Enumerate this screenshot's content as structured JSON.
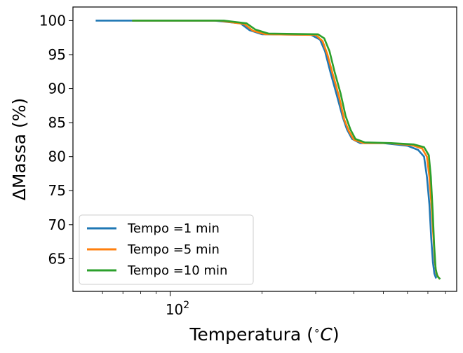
{
  "chart_data": {
    "type": "line",
    "xscale": "log",
    "xlabel": "Temperatura (°C)",
    "ylabel": "ΔMassa (%)",
    "xlim": [
      48,
      870
    ],
    "ylim": [
      60.2,
      102
    ],
    "x_tick_label": "10²",
    "y_ticks": [
      65,
      70,
      75,
      80,
      85,
      90,
      95,
      100
    ],
    "legend_position": "lower-left",
    "grid": false,
    "series": [
      {
        "name": "Tempo =1 min",
        "color": "#1f77b4",
        "points": [
          [
            57,
            100
          ],
          [
            140,
            100
          ],
          [
            170,
            99.6
          ],
          [
            182,
            98.6
          ],
          [
            200,
            98.0
          ],
          [
            290,
            97.9
          ],
          [
            310,
            97.2
          ],
          [
            322,
            95.5
          ],
          [
            335,
            92.5
          ],
          [
            352,
            89.0
          ],
          [
            368,
            85.8
          ],
          [
            380,
            84.0
          ],
          [
            395,
            82.6
          ],
          [
            420,
            82.0
          ],
          [
            500,
            82.0
          ],
          [
            600,
            81.6
          ],
          [
            650,
            81.0
          ],
          [
            680,
            80.0
          ],
          [
            695,
            77.0
          ],
          [
            708,
            73.0
          ],
          [
            718,
            68.0
          ],
          [
            727,
            64.5
          ],
          [
            735,
            62.8
          ],
          [
            745,
            62.1
          ]
        ]
      },
      {
        "name": "Tempo =5 min",
        "color": "#ff7f0e",
        "points": [
          [
            75,
            100
          ],
          [
            145,
            100
          ],
          [
            175,
            99.5
          ],
          [
            187,
            98.5
          ],
          [
            205,
            98.0
          ],
          [
            300,
            97.9
          ],
          [
            316,
            97.0
          ],
          [
            328,
            95.0
          ],
          [
            342,
            92.0
          ],
          [
            358,
            88.8
          ],
          [
            372,
            85.5
          ],
          [
            385,
            83.8
          ],
          [
            400,
            82.5
          ],
          [
            430,
            82.0
          ],
          [
            520,
            82.0
          ],
          [
            620,
            81.7
          ],
          [
            670,
            81.2
          ],
          [
            695,
            80.0
          ],
          [
            708,
            77.0
          ],
          [
            720,
            72.5
          ],
          [
            730,
            68.0
          ],
          [
            738,
            64.5
          ],
          [
            746,
            62.8
          ],
          [
            765,
            62.0
          ]
        ]
      },
      {
        "name": "Tempo =10 min",
        "color": "#2ca02c",
        "points": [
          [
            75,
            100
          ],
          [
            150,
            100
          ],
          [
            178,
            99.6
          ],
          [
            190,
            98.7
          ],
          [
            210,
            98.1
          ],
          [
            305,
            98.0
          ],
          [
            320,
            97.4
          ],
          [
            333,
            95.5
          ],
          [
            346,
            92.5
          ],
          [
            362,
            89.3
          ],
          [
            376,
            86.0
          ],
          [
            390,
            84.0
          ],
          [
            405,
            82.6
          ],
          [
            435,
            82.1
          ],
          [
            530,
            82.0
          ],
          [
            630,
            81.8
          ],
          [
            680,
            81.4
          ],
          [
            705,
            80.2
          ],
          [
            716,
            77.0
          ],
          [
            726,
            72.0
          ],
          [
            734,
            67.0
          ],
          [
            742,
            63.5
          ],
          [
            752,
            62.4
          ],
          [
            768,
            62.0
          ]
        ]
      }
    ]
  }
}
